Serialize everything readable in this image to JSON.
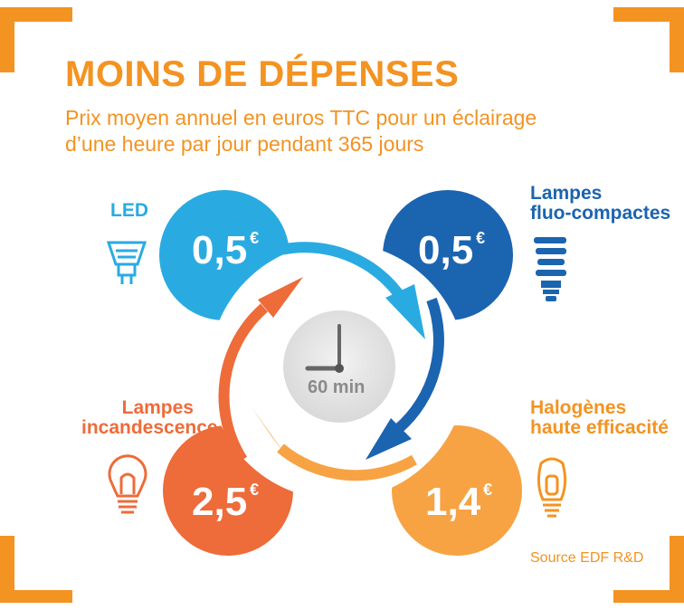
{
  "title": "MOINS DE DÉPENSES",
  "subtitle": {
    "line1": "Prix moyen annuel en euros TTC pour un éclairage",
    "line2": "d’une heure par jour pendant 365 jours"
  },
  "clock": {
    "label": "60 min"
  },
  "lamps": {
    "led": {
      "label": "LED",
      "value": "0,5",
      "currency": "€",
      "color": "#29abe2",
      "icon": "led-spot-bulb-icon"
    },
    "fluo": {
      "label_line1": "Lampes",
      "label_line2": "fluo-compactes",
      "value": "0,5",
      "currency": "€",
      "color": "#1b64b0",
      "icon": "compact-fluorescent-bulb-icon"
    },
    "halogen": {
      "label_line1": "Halogènes",
      "label_line2": "haute efficacité",
      "value": "1,4",
      "currency": "€",
      "color": "#f7a344",
      "icon": "halogen-bulb-icon"
    },
    "incandescent": {
      "label_line1": "Lampes",
      "label_line2": "incandescence",
      "value": "2,5",
      "currency": "€",
      "color": "#ee6b3a",
      "icon": "incandescent-bulb-icon"
    }
  },
  "source": "Source EDF R&D"
}
